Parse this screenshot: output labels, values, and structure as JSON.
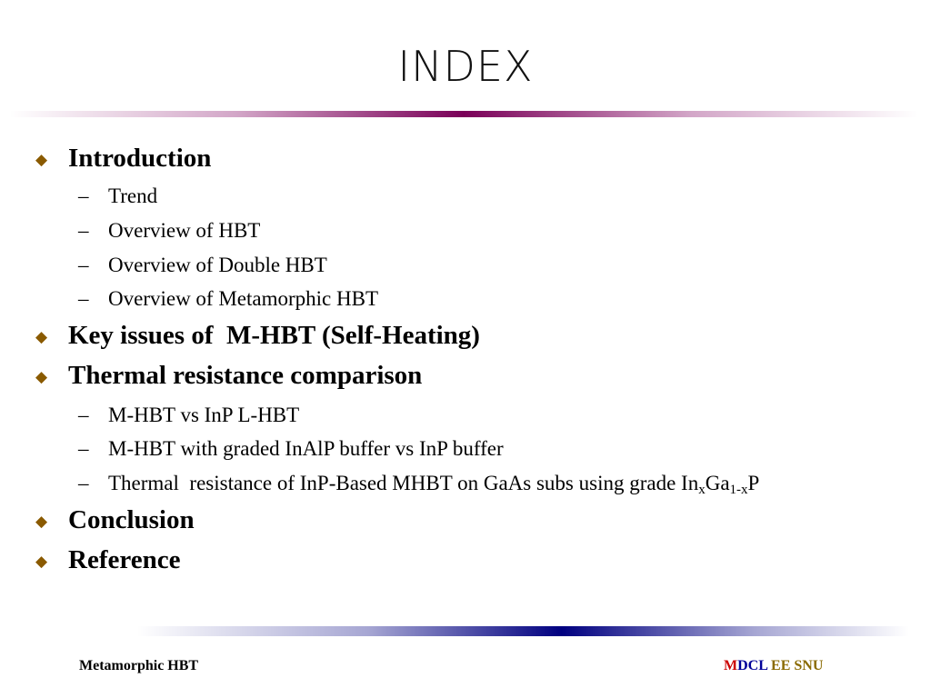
{
  "slide": {
    "title": "INDEX",
    "bullet_symbol": "◆",
    "dash_symbol": "–",
    "sections": [
      {
        "label": "Introduction",
        "items": [
          "Trend",
          "Overview of HBT",
          "Overview of Double HBT",
          "Overview of Metamorphic HBT"
        ]
      },
      {
        "label": "Key issues of  M-HBT (Self-Heating)",
        "items": []
      },
      {
        "label": "Thermal resistance comparison",
        "items": [
          "M-HBT vs InP L-HBT",
          "M-HBT with graded InAlP buffer vs InP buffer",
          {
            "prefix": "Thermal  resistance of InP-Based MHBT on GaAs subs using grade In",
            "sub1": "x",
            "mid": "Ga",
            "sub2": "1-x",
            "suffix": "P"
          }
        ]
      },
      {
        "label": "Conclusion",
        "items": []
      },
      {
        "label": "Reference",
        "items": []
      }
    ]
  },
  "footer": {
    "left": "Metamorphic HBT",
    "right_parts": [
      {
        "text": "M",
        "color": "#cc0000"
      },
      {
        "text": "DCL",
        "color": "#000099"
      },
      {
        "text": " EE SNU",
        "color": "#8a6a00"
      }
    ]
  },
  "colors": {
    "bullet": "#8a5a00",
    "top_rule": "#7a0058",
    "bottom_rule": "#000080"
  }
}
